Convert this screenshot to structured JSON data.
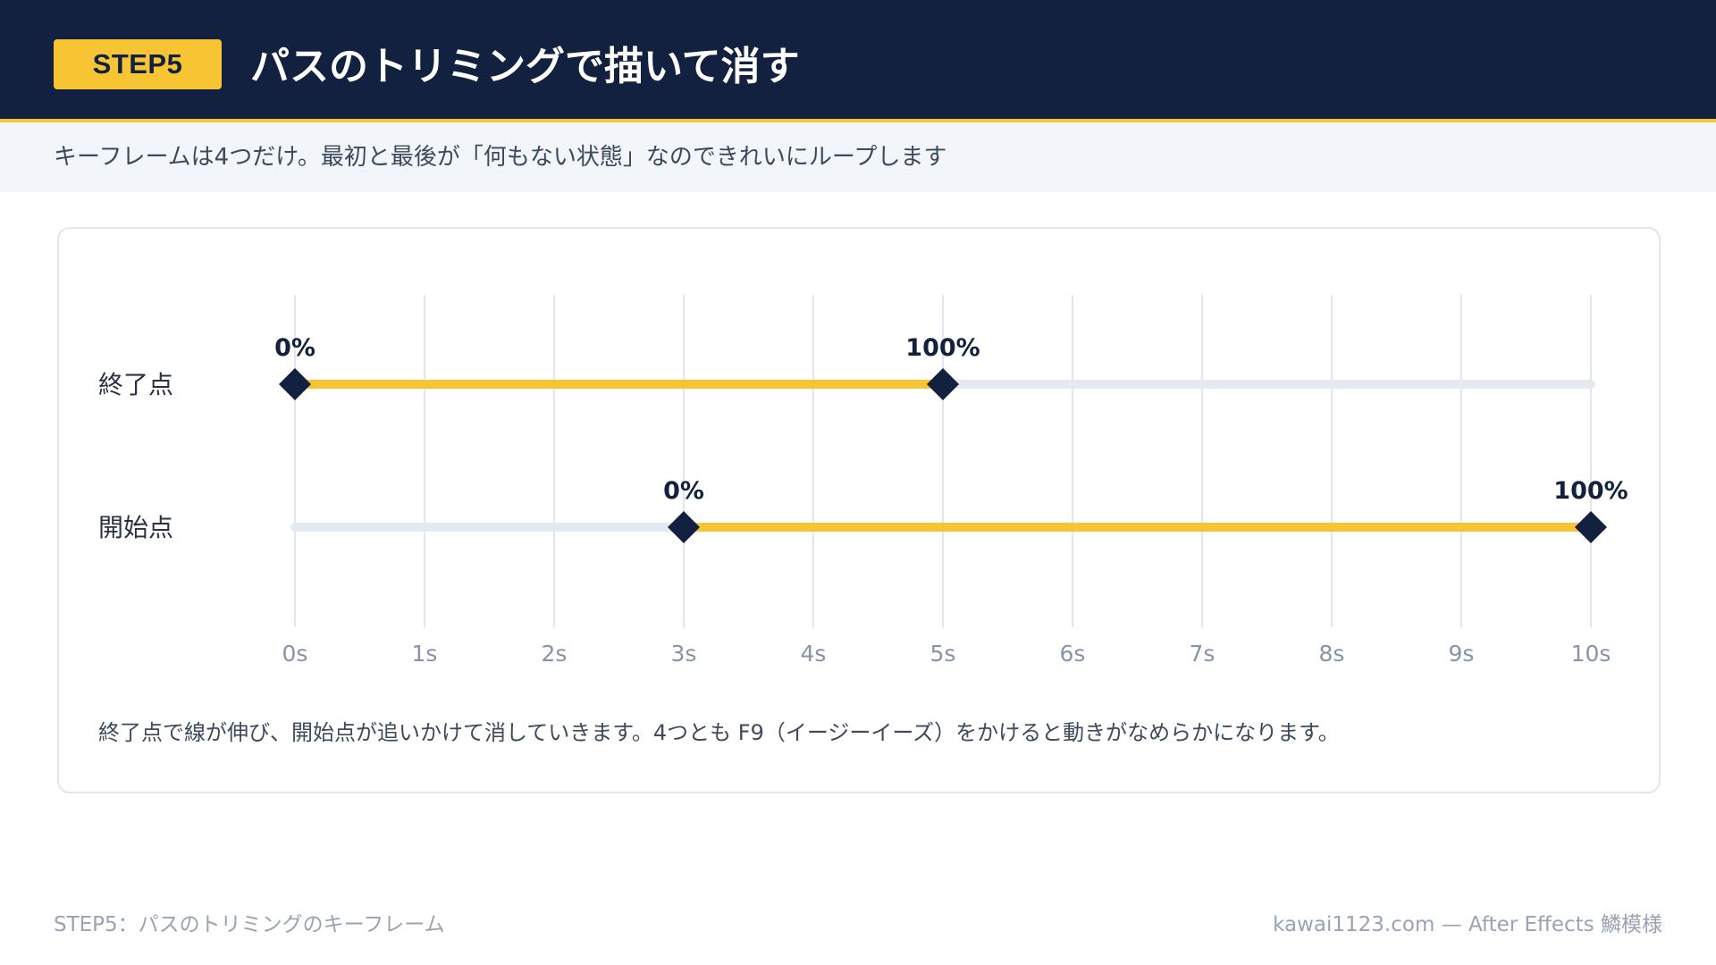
{
  "header": {
    "badge": "STEP5",
    "title": "パスのトリミングで描いて消す"
  },
  "subtitle": "キーフレームは4つだけ。最初と最後が「何もない状態」なのできれいにループします",
  "colors": {
    "header_bg": "#12213f",
    "accent": "#f7c533",
    "track": "#e5e9f0",
    "keyframe": "#12213f"
  },
  "chart_data": {
    "type": "timeline",
    "x_ticks": [
      "0s",
      "1s",
      "2s",
      "3s",
      "4s",
      "5s",
      "6s",
      "7s",
      "8s",
      "9s",
      "10s"
    ],
    "xlim": [
      0,
      10
    ],
    "rows": [
      {
        "label": "終了点",
        "active_range": [
          0,
          5
        ],
        "keyframes": [
          {
            "time": 0,
            "label": "0%"
          },
          {
            "time": 5,
            "label": "100%"
          }
        ]
      },
      {
        "label": "開始点",
        "active_range": [
          3,
          10
        ],
        "keyframes": [
          {
            "time": 3,
            "label": "0%"
          },
          {
            "time": 10,
            "label": "100%"
          }
        ]
      }
    ]
  },
  "note": "終了点で線が伸び、開始点が追いかけて消していきます。4つとも F9（イージーイーズ）をかけると動きがなめらかになります。",
  "footer": {
    "left": "STEP5：パスのトリミングのキーフレーム",
    "right": "kawai1123.com — After Effects 鱗模様"
  }
}
